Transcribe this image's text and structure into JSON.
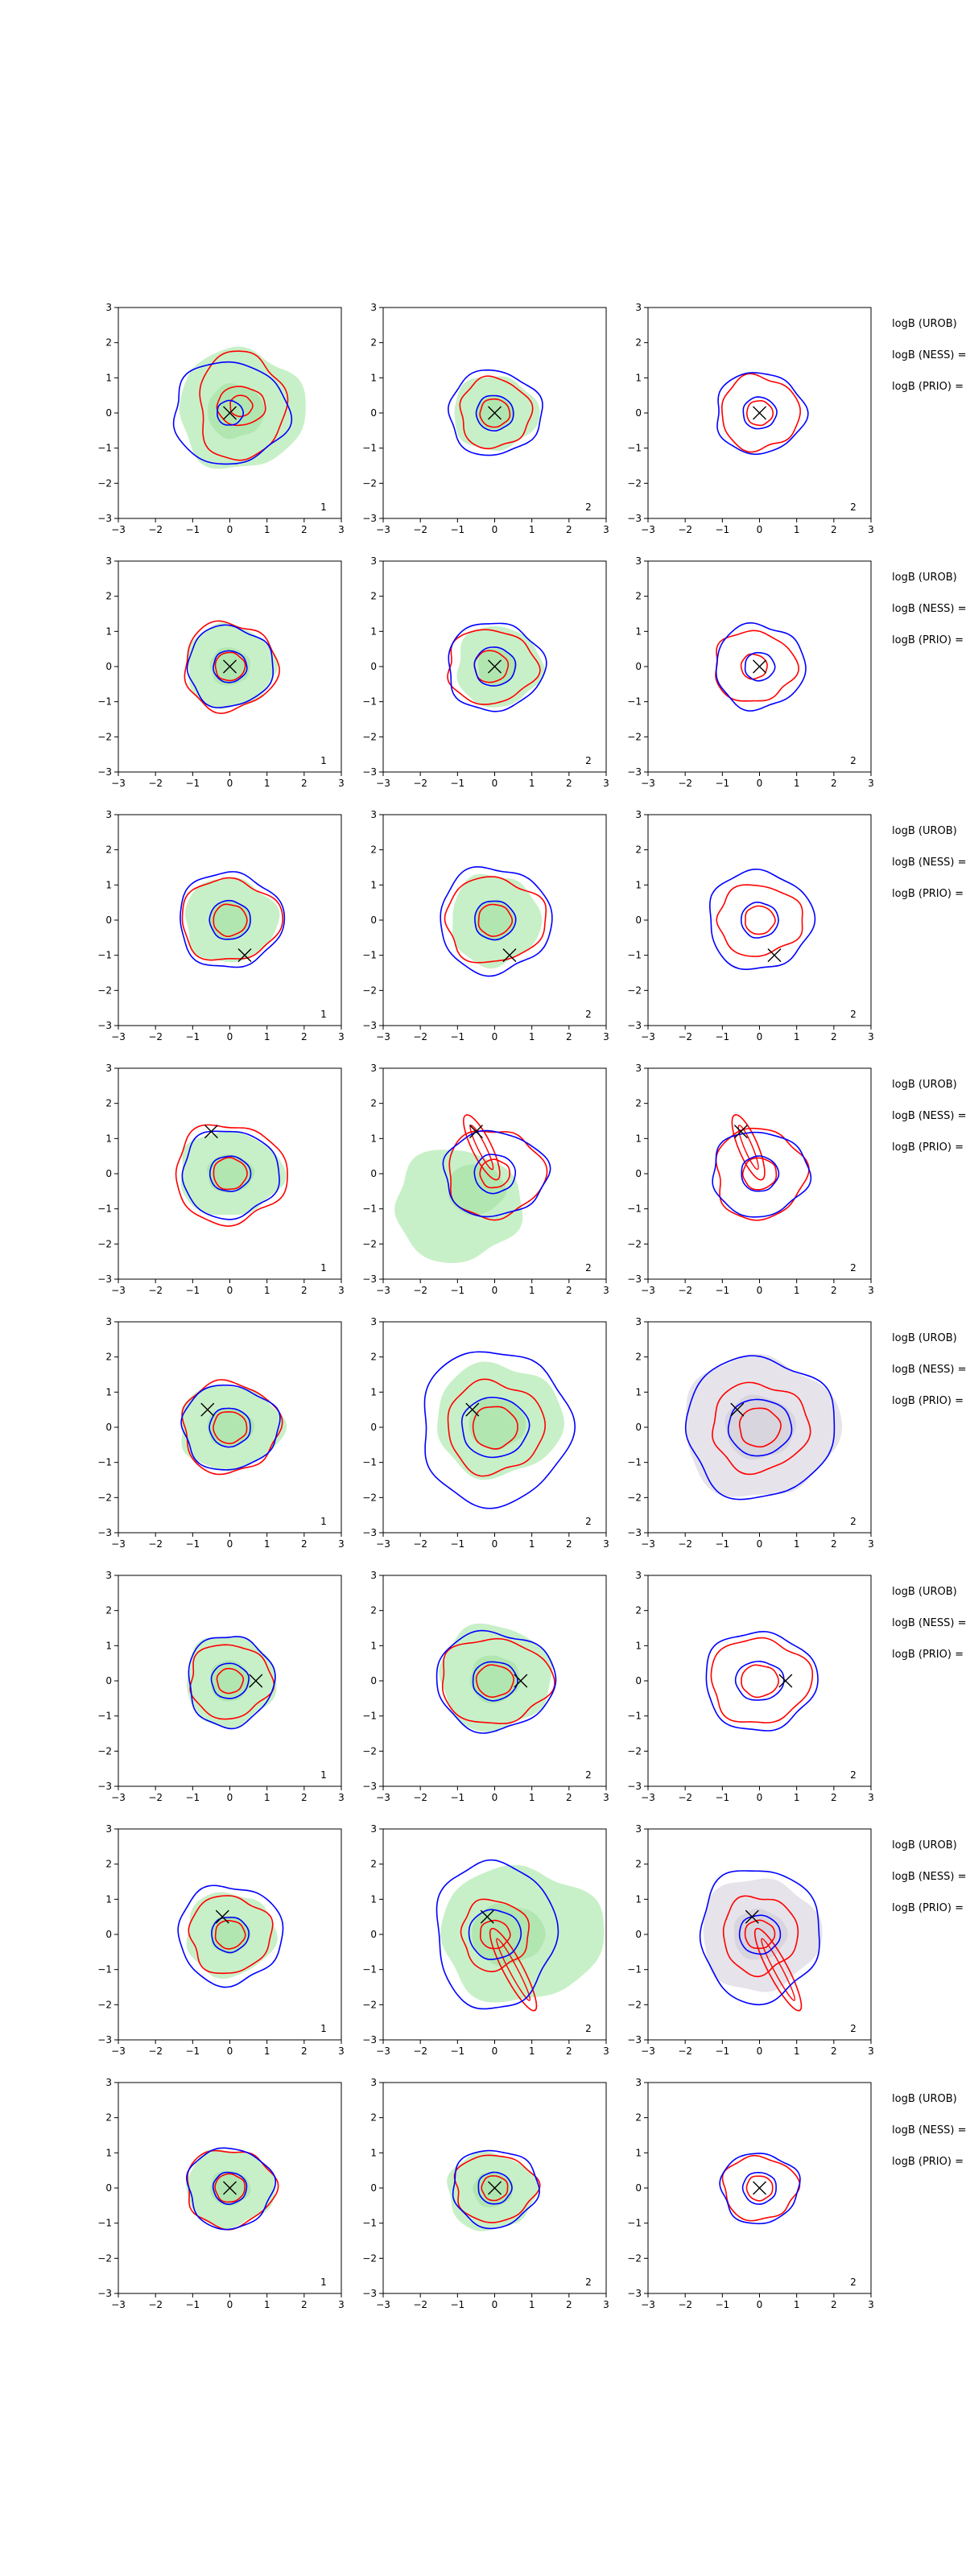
{
  "figure": {
    "background": "#ffffff",
    "colors": {
      "blue_contour": "#0000ff",
      "red_contour": "#ff0000",
      "green_fill": "#c8f0c8",
      "green_fill_dark": "#a6e1a6",
      "grey_fill": "#e6e4ea",
      "grey_fill_dark": "#d2cfd9",
      "truth_marker": "#000000"
    },
    "side_labels": [
      "logB (UROB)",
      "logB (NESS) =",
      "logB (PRIO) ="
    ]
  },
  "chart_data": {
    "type": "contour",
    "grid": {
      "rows": 8,
      "cols": 3
    },
    "xlim": [
      -3,
      3
    ],
    "ylim": [
      -3,
      3
    ],
    "xticks": [
      -3,
      -2,
      -1,
      0,
      1,
      2,
      3
    ],
    "yticks": [
      -3,
      -2,
      -1,
      0,
      1,
      2,
      3
    ],
    "panel_labels": [
      "1",
      "2",
      "2"
    ],
    "row_truth_points": [
      [
        0,
        0
      ],
      [
        0,
        0
      ],
      [
        0.4,
        -1.0
      ],
      [
        -0.5,
        1.2
      ],
      [
        -0.6,
        0.5
      ],
      [
        0.7,
        0
      ],
      [
        -0.2,
        0.5
      ],
      [
        0,
        0
      ]
    ],
    "panels": [
      {
        "row": 0,
        "col": 0,
        "fill": "green",
        "fill_extent": [
          1.7,
          1.7
        ],
        "fill_center": [
          0.3,
          0.1
        ],
        "blue": [
          [
            1.55,
            1.45
          ],
          [
            0.35,
            0.35
          ]
        ],
        "red": [
          [
            1.15,
            1.55
          ],
          [
            0.65,
            0.55
          ],
          [
            0.3,
            0.3
          ]
        ],
        "red_center": [
          0.3,
          0.2
        ]
      },
      {
        "row": 0,
        "col": 1,
        "fill": "green",
        "fill_extent": [
          1.15,
          1.05
        ],
        "fill_center": [
          0,
          0
        ],
        "blue": [
          [
            1.25,
            1.2
          ],
          [
            0.5,
            0.5
          ]
        ],
        "red": [
          [
            0.95,
            1.0
          ],
          [
            0.4,
            0.4
          ]
        ],
        "red_center": [
          0,
          0
        ]
      },
      {
        "row": 0,
        "col": 2,
        "fill": "none",
        "blue": [
          [
            1.2,
            1.15
          ],
          [
            0.45,
            0.45
          ]
        ],
        "red": [
          [
            1.05,
            1.05
          ],
          [
            0.35,
            0.35
          ]
        ],
        "red_center": [
          0,
          0
        ]
      },
      {
        "row": 1,
        "col": 0,
        "fill": "green",
        "fill_extent": [
          1.2,
          1.2
        ],
        "fill_center": [
          0,
          0
        ],
        "blue": [
          [
            1.15,
            1.15
          ],
          [
            0.45,
            0.45
          ]
        ],
        "red": [
          [
            1.25,
            1.25
          ],
          [
            0.4,
            0.4
          ]
        ],
        "red_center": [
          0,
          0
        ]
      },
      {
        "row": 1,
        "col": 1,
        "fill": "green",
        "fill_extent": [
          1.15,
          1.15
        ],
        "fill_center": [
          0.1,
          0
        ],
        "blue": [
          [
            1.3,
            1.25
          ],
          [
            0.55,
            0.55
          ]
        ],
        "red": [
          [
            1.2,
            1.05
          ],
          [
            0.45,
            0.45
          ]
        ],
        "red_center": [
          -0.1,
          0
        ]
      },
      {
        "row": 1,
        "col": 2,
        "fill": "none",
        "blue": [
          [
            1.2,
            1.2
          ],
          [
            0.4,
            0.4
          ]
        ],
        "red": [
          [
            1.1,
            1.0
          ],
          [
            0.35,
            0.35
          ]
        ],
        "red_center": [
          -0.15,
          0
        ]
      },
      {
        "row": 2,
        "col": 0,
        "fill": "green",
        "fill_extent": [
          1.25,
          1.2
        ],
        "fill_center": [
          0,
          0
        ],
        "blue": [
          [
            1.4,
            1.35
          ],
          [
            0.55,
            0.55
          ]
        ],
        "red": [
          [
            1.35,
            1.15
          ],
          [
            0.45,
            0.45
          ]
        ],
        "red_center": [
          0,
          0
        ]
      },
      {
        "row": 2,
        "col": 1,
        "fill": "green",
        "fill_extent": [
          1.2,
          1.3
        ],
        "fill_center": [
          0,
          0
        ],
        "blue": [
          [
            1.5,
            1.5
          ],
          [
            0.55,
            0.55
          ]
        ],
        "red": [
          [
            1.35,
            1.2
          ],
          [
            0.45,
            0.45
          ]
        ],
        "red_center": [
          0,
          0
        ]
      },
      {
        "row": 2,
        "col": 2,
        "fill": "none",
        "blue": [
          [
            1.4,
            1.4
          ],
          [
            0.5,
            0.5
          ]
        ],
        "red": [
          [
            1.15,
            1.0
          ],
          [
            0.4,
            0.4
          ]
        ],
        "red_center": [
          0,
          0
        ]
      },
      {
        "row": 3,
        "col": 0,
        "fill": "green",
        "fill_extent": [
          1.4,
          1.2
        ],
        "fill_center": [
          0,
          0
        ],
        "blue": [
          [
            1.3,
            1.25
          ],
          [
            0.55,
            0.5
          ]
        ],
        "red": [
          [
            1.5,
            1.4
          ],
          [
            0.45,
            0.45
          ]
        ],
        "red_center": [
          0,
          0
        ]
      },
      {
        "row": 3,
        "col": 1,
        "fill": "green",
        "fill_extent": [
          1.7,
          1.6
        ],
        "fill_center": [
          -1.0,
          -0.9
        ],
        "blue": [
          [
            1.4,
            1.2
          ],
          [
            0.55,
            0.55
          ]
        ],
        "red": [
          [
            1.3,
            1.25
          ],
          [
            0.4,
            0.4
          ]
        ],
        "red_center": [
          0,
          0
        ],
        "red_tail": [
          -0.7,
          1.5
        ]
      },
      {
        "row": 3,
        "col": 2,
        "fill": "none",
        "blue": [
          [
            1.3,
            1.2
          ],
          [
            0.5,
            0.5
          ]
        ],
        "red": [
          [
            1.2,
            1.3
          ],
          [
            0.45,
            0.45
          ]
        ],
        "red_center": [
          0,
          0
        ],
        "red_tail": [
          -0.6,
          1.5
        ]
      },
      {
        "row": 4,
        "col": 0,
        "fill": "green",
        "fill_extent": [
          1.4,
          1.2
        ],
        "fill_center": [
          0,
          0
        ],
        "blue": [
          [
            1.3,
            1.2
          ],
          [
            0.55,
            0.55
          ]
        ],
        "red": [
          [
            1.3,
            1.3
          ],
          [
            0.45,
            0.45
          ]
        ],
        "red_center": [
          0,
          0
        ]
      },
      {
        "row": 4,
        "col": 1,
        "fill": "green",
        "fill_extent": [
          1.7,
          1.6
        ],
        "fill_center": [
          0.1,
          0.2
        ],
        "blue": [
          [
            2.0,
            2.2
          ],
          [
            0.9,
            0.85
          ]
        ],
        "red": [
          [
            1.3,
            1.3
          ],
          [
            0.6,
            0.6
          ]
        ],
        "red_center": [
          0,
          0
        ]
      },
      {
        "row": 4,
        "col": 2,
        "fill": "grey",
        "fill_extent": [
          2.1,
          2.0
        ],
        "fill_center": [
          0,
          0
        ],
        "blue": [
          [
            2.0,
            2.0
          ],
          [
            0.85,
            0.8
          ]
        ],
        "red": [
          [
            1.3,
            1.25
          ],
          [
            0.55,
            0.55
          ]
        ],
        "red_center": [
          0,
          0
        ]
      },
      {
        "row": 5,
        "col": 0,
        "fill": "green",
        "fill_extent": [
          1.2,
          1.3
        ],
        "fill_center": [
          0,
          0
        ],
        "blue": [
          [
            1.15,
            1.3
          ],
          [
            0.5,
            0.5
          ]
        ],
        "red": [
          [
            1.1,
            1.05
          ],
          [
            0.35,
            0.35
          ]
        ],
        "red_center": [
          0,
          0
        ]
      },
      {
        "row": 5,
        "col": 1,
        "fill": "green",
        "fill_extent": [
          1.5,
          1.5
        ],
        "fill_center": [
          0,
          0.1
        ],
        "blue": [
          [
            1.6,
            1.4
          ],
          [
            0.6,
            0.55
          ]
        ],
        "red": [
          [
            1.5,
            1.2
          ],
          [
            0.5,
            0.45
          ]
        ],
        "red_center": [
          0,
          0
        ]
      },
      {
        "row": 5,
        "col": 2,
        "fill": "none",
        "blue": [
          [
            1.5,
            1.4
          ],
          [
            0.65,
            0.55
          ]
        ],
        "red": [
          [
            1.35,
            1.2
          ],
          [
            0.5,
            0.45
          ]
        ],
        "red_center": [
          0,
          0
        ]
      },
      {
        "row": 6,
        "col": 0,
        "fill": "green",
        "fill_extent": [
          1.2,
          1.2
        ],
        "fill_center": [
          0,
          0
        ],
        "blue": [
          [
            1.4,
            1.4
          ],
          [
            0.5,
            0.5
          ]
        ],
        "red": [
          [
            1.1,
            1.1
          ],
          [
            0.4,
            0.4
          ]
        ],
        "red_center": [
          0,
          0
        ]
      },
      {
        "row": 6,
        "col": 1,
        "fill": "green",
        "fill_extent": [
          2.2,
          1.9
        ],
        "fill_center": [
          0.7,
          0
        ],
        "blue": [
          [
            1.6,
            2.1
          ],
          [
            0.7,
            0.7
          ]
        ],
        "red": [
          [
            0.9,
            1.0
          ],
          [
            0.4,
            0.4
          ]
        ],
        "red_center": [
          0,
          0
        ],
        "red_tail": [
          1.0,
          -2.0
        ]
      },
      {
        "row": 6,
        "col": 2,
        "fill": "grey",
        "fill_extent": [
          1.6,
          1.6
        ],
        "fill_center": [
          0,
          0
        ],
        "blue": [
          [
            1.6,
            1.9
          ],
          [
            0.55,
            0.55
          ]
        ],
        "red": [
          [
            1.0,
            1.1
          ],
          [
            0.4,
            0.4
          ]
        ],
        "red_center": [
          0,
          0
        ],
        "red_tail": [
          1.0,
          -2.0
        ]
      },
      {
        "row": 7,
        "col": 0,
        "fill": "green",
        "fill_extent": [
          1.2,
          1.1
        ],
        "fill_center": [
          0,
          0
        ],
        "blue": [
          [
            1.15,
            1.15
          ],
          [
            0.45,
            0.45
          ]
        ],
        "red": [
          [
            1.2,
            1.1
          ],
          [
            0.4,
            0.4
          ]
        ],
        "red_center": [
          0,
          0
        ]
      },
      {
        "row": 7,
        "col": 1,
        "fill": "green",
        "fill_extent": [
          1.2,
          1.1
        ],
        "fill_center": [
          -0.1,
          -0.1
        ],
        "blue": [
          [
            1.15,
            1.1
          ],
          [
            0.45,
            0.45
          ]
        ],
        "red": [
          [
            1.1,
            0.95
          ],
          [
            0.35,
            0.35
          ]
        ],
        "red_center": [
          0,
          0
        ]
      },
      {
        "row": 7,
        "col": 2,
        "fill": "none",
        "blue": [
          [
            1.05,
            1.0
          ],
          [
            0.45,
            0.45
          ]
        ],
        "red": [
          [
            1.0,
            0.9
          ],
          [
            0.35,
            0.35
          ]
        ],
        "red_center": [
          0,
          0
        ]
      }
    ]
  }
}
